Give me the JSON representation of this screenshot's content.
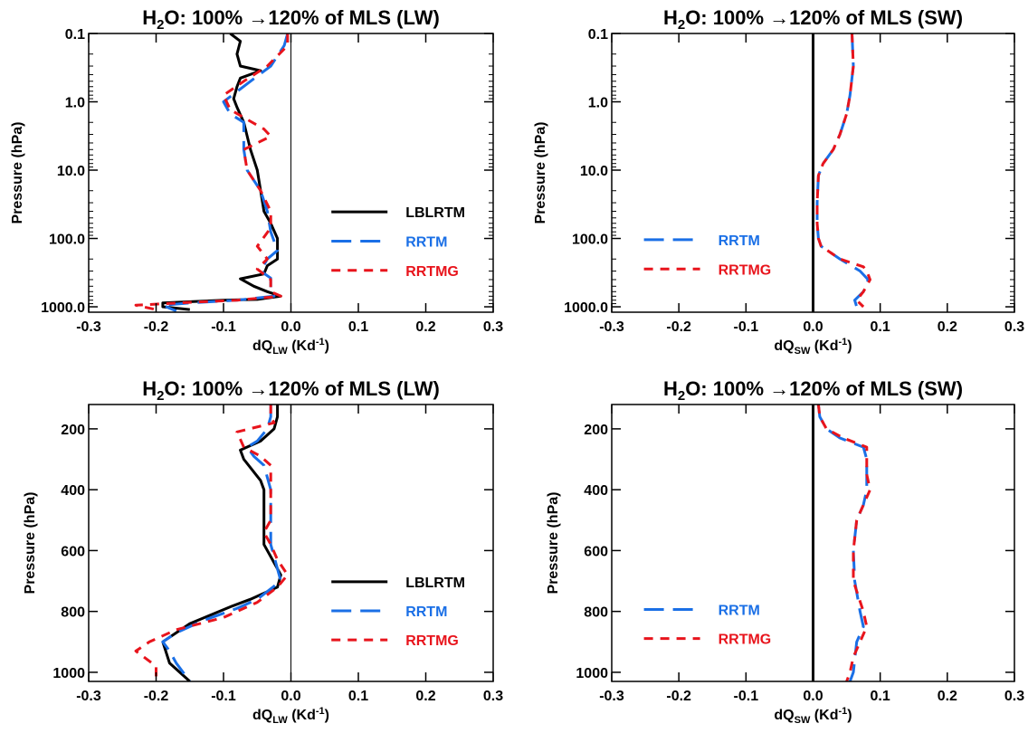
{
  "colors": {
    "LBLRTM": "#000000",
    "RRTM": "#1a6fe6",
    "RRTMG": "#e8141c"
  },
  "chart_data": [
    {
      "type": "line",
      "title_main": "H",
      "title_sub": "2",
      "title_rest": "O: 100% →120% of MLS (LW)",
      "xlabel_main": "dQ",
      "xlabel_sub": "LW",
      "xlabel_rest": " (Kd",
      "xlabel_sup": "-1",
      "xlabel_end": ")",
      "ylabel": "Pressure (hPa)",
      "xlim": [
        -0.3,
        0.3
      ],
      "ylim": [
        1200,
        0.1
      ],
      "yscale": "log",
      "xticks": [
        "-0.3",
        "-0.2",
        "-0.1",
        "0.0",
        "0.1",
        "0.2",
        "0.3"
      ],
      "yticks": [
        {
          "value": 0.1,
          "label": "0.1"
        },
        {
          "value": 1,
          "label": "1.0"
        },
        {
          "value": 10,
          "label": "10.0"
        },
        {
          "value": 100,
          "label": "100.0"
        },
        {
          "value": 1000,
          "label": "1000.0"
        }
      ],
      "legend": {
        "placement": "center-right",
        "entries": [
          "LBLRTM",
          "RRTM",
          "RRTMG"
        ]
      },
      "series": [
        {
          "name": "LBLRTM",
          "dash": "solid",
          "points": [
            [
              -0.09,
              0.1
            ],
            [
              -0.075,
              0.13
            ],
            [
              -0.08,
              0.2
            ],
            [
              -0.075,
              0.3
            ],
            [
              -0.045,
              0.35
            ],
            [
              -0.075,
              0.45
            ],
            [
              -0.08,
              0.6
            ],
            [
              -0.085,
              0.9
            ],
            [
              -0.08,
              1.2
            ],
            [
              -0.07,
              2
            ],
            [
              -0.06,
              5
            ],
            [
              -0.05,
              10
            ],
            [
              -0.045,
              20
            ],
            [
              -0.04,
              40
            ],
            [
              -0.03,
              60
            ],
            [
              -0.02,
              100
            ],
            [
              -0.02,
              200
            ],
            [
              -0.035,
              250
            ],
            [
              -0.04,
              330
            ],
            [
              -0.075,
              390
            ],
            [
              -0.055,
              500
            ],
            [
              -0.035,
              600
            ],
            [
              -0.015,
              700
            ],
            [
              -0.05,
              780
            ],
            [
              -0.1,
              800
            ],
            [
              -0.19,
              880
            ],
            [
              -0.19,
              1000
            ],
            [
              -0.15,
              1100
            ]
          ]
        },
        {
          "name": "RRTM",
          "dash": "long",
          "points": [
            [
              -0.005,
              0.1
            ],
            [
              -0.01,
              0.15
            ],
            [
              -0.03,
              0.3
            ],
            [
              -0.06,
              0.5
            ],
            [
              -0.1,
              1.0
            ],
            [
              -0.09,
              1.5
            ],
            [
              -0.07,
              2
            ],
            [
              -0.07,
              5
            ],
            [
              -0.065,
              10
            ],
            [
              -0.045,
              20
            ],
            [
              -0.035,
              40
            ],
            [
              -0.03,
              80
            ],
            [
              -0.02,
              150
            ],
            [
              -0.035,
              200
            ],
            [
              -0.045,
              300
            ],
            [
              -0.03,
              380
            ],
            [
              -0.03,
              600
            ],
            [
              -0.025,
              700
            ],
            [
              -0.08,
              800
            ],
            [
              -0.15,
              880
            ],
            [
              -0.19,
              950
            ],
            [
              -0.18,
              1050
            ],
            [
              -0.17,
              1150
            ]
          ]
        },
        {
          "name": "RRTMG",
          "dash": "short",
          "points": [
            [
              -0.005,
              0.1
            ],
            [
              -0.005,
              0.15
            ],
            [
              -0.035,
              0.3
            ],
            [
              -0.07,
              0.5
            ],
            [
              -0.1,
              0.8
            ],
            [
              -0.09,
              1.3
            ],
            [
              -0.07,
              1.7
            ],
            [
              -0.04,
              2.5
            ],
            [
              -0.03,
              3.2
            ],
            [
              -0.07,
              5
            ],
            [
              -0.065,
              10
            ],
            [
              -0.045,
              20
            ],
            [
              -0.03,
              40
            ],
            [
              -0.03,
              70
            ],
            [
              -0.05,
              130
            ],
            [
              -0.035,
              200
            ],
            [
              -0.05,
              280
            ],
            [
              -0.03,
              400
            ],
            [
              -0.03,
              600
            ],
            [
              -0.015,
              700
            ],
            [
              -0.08,
              800
            ],
            [
              -0.16,
              870
            ],
            [
              -0.23,
              950
            ],
            [
              -0.2,
              1100
            ]
          ]
        }
      ]
    },
    {
      "type": "line",
      "title_main": "H",
      "title_sub": "2",
      "title_rest": "O: 100% →120% of MLS (SW)",
      "xlabel_main": "dQ",
      "xlabel_sub": "SW",
      "xlabel_rest": " (Kd",
      "xlabel_sup": "-1",
      "xlabel_end": ")",
      "ylabel": "Pressure (hPa)",
      "xlim": [
        -0.3,
        0.3
      ],
      "ylim": [
        1200,
        0.1
      ],
      "yscale": "log",
      "xticks": [
        "-0.3",
        "-0.2",
        "-0.1",
        "0.0",
        "0.1",
        "0.2",
        "0.3"
      ],
      "yticks": [
        {
          "value": 0.1,
          "label": "0.1"
        },
        {
          "value": 1,
          "label": "1.0"
        },
        {
          "value": 10,
          "label": "10.0"
        },
        {
          "value": 100,
          "label": "100.0"
        },
        {
          "value": 1000,
          "label": "1000.0"
        }
      ],
      "legend": {
        "placement": "center-left",
        "entries": [
          "RRTM",
          "RRTMG"
        ]
      },
      "series": [
        {
          "name": "RRTM",
          "dash": "long",
          "points": [
            [
              0.058,
              0.1
            ],
            [
              0.06,
              0.3
            ],
            [
              0.055,
              0.8
            ],
            [
              0.05,
              1.5
            ],
            [
              0.04,
              3
            ],
            [
              0.03,
              5
            ],
            [
              0.015,
              8
            ],
            [
              0.008,
              12
            ],
            [
              0.006,
              30
            ],
            [
              0.006,
              60
            ],
            [
              0.008,
              100
            ],
            [
              0.012,
              130
            ],
            [
              0.04,
              200
            ],
            [
              0.07,
              300
            ],
            [
              0.082,
              400
            ],
            [
              0.075,
              600
            ],
            [
              0.062,
              800
            ],
            [
              0.065,
              1000
            ]
          ]
        },
        {
          "name": "RRTMG",
          "dash": "short",
          "points": [
            [
              0.058,
              0.1
            ],
            [
              0.06,
              0.3
            ],
            [
              0.055,
              0.8
            ],
            [
              0.05,
              1.5
            ],
            [
              0.04,
              3
            ],
            [
              0.03,
              5
            ],
            [
              0.015,
              8
            ],
            [
              0.008,
              12
            ],
            [
              0.006,
              30
            ],
            [
              0.006,
              60
            ],
            [
              0.008,
              100
            ],
            [
              0.012,
              130
            ],
            [
              0.04,
              200
            ],
            [
              0.075,
              260
            ],
            [
              0.08,
              300
            ],
            [
              0.085,
              400
            ],
            [
              0.075,
              600
            ],
            [
              0.065,
              800
            ],
            [
              0.075,
              1000
            ]
          ]
        }
      ]
    },
    {
      "type": "line",
      "title_main": "H",
      "title_sub": "2",
      "title_rest": "O: 100% →120% of MLS (LW)",
      "xlabel_main": "dQ",
      "xlabel_sub": "LW",
      "xlabel_rest": " (Kd",
      "xlabel_sup": "-1",
      "xlabel_end": ")",
      "ylabel": "Pressure (hPa)",
      "xlim": [
        -0.3,
        0.3
      ],
      "ylim": [
        1030,
        120
      ],
      "yscale": "linear",
      "xticks": [
        "-0.3",
        "-0.2",
        "-0.1",
        "0.0",
        "0.1",
        "0.2",
        "0.3"
      ],
      "yticks": [
        {
          "value": 200,
          "label": "200"
        },
        {
          "value": 400,
          "label": "400"
        },
        {
          "value": 600,
          "label": "600"
        },
        {
          "value": 800,
          "label": "800"
        },
        {
          "value": 1000,
          "label": "1000"
        }
      ],
      "legend": {
        "placement": "center-right",
        "entries": [
          "LBLRTM",
          "RRTM",
          "RRTMG"
        ]
      },
      "series": [
        {
          "name": "LBLRTM",
          "dash": "solid",
          "points": [
            [
              -0.02,
              120
            ],
            [
              -0.02,
              160
            ],
            [
              -0.025,
              200
            ],
            [
              -0.045,
              240
            ],
            [
              -0.075,
              270
            ],
            [
              -0.07,
              300
            ],
            [
              -0.045,
              370
            ],
            [
              -0.04,
              400
            ],
            [
              -0.04,
              500
            ],
            [
              -0.04,
              580
            ],
            [
              -0.03,
              620
            ],
            [
              -0.015,
              680
            ],
            [
              -0.02,
              720
            ],
            [
              -0.06,
              760
            ],
            [
              -0.09,
              785
            ],
            [
              -0.15,
              840
            ],
            [
              -0.19,
              900
            ],
            [
              -0.18,
              970
            ],
            [
              -0.15,
              1030
            ]
          ]
        },
        {
          "name": "RRTM",
          "dash": "long",
          "points": [
            [
              -0.03,
              120
            ],
            [
              -0.03,
              160
            ],
            [
              -0.035,
              200
            ],
            [
              -0.05,
              240
            ],
            [
              -0.065,
              260
            ],
            [
              -0.055,
              290
            ],
            [
              -0.04,
              320
            ],
            [
              -0.03,
              400
            ],
            [
              -0.03,
              500
            ],
            [
              -0.03,
              580
            ],
            [
              -0.025,
              620
            ],
            [
              -0.015,
              700
            ],
            [
              -0.05,
              760
            ],
            [
              -0.08,
              790
            ],
            [
              -0.13,
              830
            ],
            [
              -0.17,
              870
            ],
            [
              -0.19,
              900
            ],
            [
              -0.18,
              930
            ],
            [
              -0.17,
              970
            ],
            [
              -0.15,
              1030
            ]
          ]
        },
        {
          "name": "RRTMG",
          "dash": "short",
          "points": [
            [
              -0.03,
              120
            ],
            [
              -0.03,
              160
            ],
            [
              -0.025,
              180
            ],
            [
              -0.08,
              210
            ],
            [
              -0.07,
              260
            ],
            [
              -0.045,
              290
            ],
            [
              -0.03,
              320
            ],
            [
              -0.03,
              400
            ],
            [
              -0.03,
              500
            ],
            [
              -0.04,
              540
            ],
            [
              -0.03,
              580
            ],
            [
              -0.02,
              630
            ],
            [
              -0.005,
              680
            ],
            [
              -0.02,
              720
            ],
            [
              -0.05,
              770
            ],
            [
              -0.1,
              820
            ],
            [
              -0.17,
              860
            ],
            [
              -0.21,
              900
            ],
            [
              -0.23,
              930
            ],
            [
              -0.2,
              980
            ],
            [
              -0.2,
              1030
            ]
          ]
        }
      ]
    },
    {
      "type": "line",
      "title_main": "H",
      "title_sub": "2",
      "title_rest": "O: 100% →120% of MLS (SW)",
      "xlabel_main": "dQ",
      "xlabel_sub": "SW",
      "xlabel_rest": " (Kd",
      "xlabel_sup": "-1",
      "xlabel_end": ")",
      "ylabel": "Pressure (hPa)",
      "xlim": [
        -0.3,
        0.3
      ],
      "ylim": [
        1030,
        120
      ],
      "yscale": "linear",
      "xticks": [
        "-0.3",
        "-0.2",
        "-0.1",
        "0.0",
        "0.1",
        "0.2",
        "0.3"
      ],
      "yticks": [
        {
          "value": 200,
          "label": "200"
        },
        {
          "value": 400,
          "label": "400"
        },
        {
          "value": 600,
          "label": "600"
        },
        {
          "value": 800,
          "label": "800"
        },
        {
          "value": 1000,
          "label": "1000"
        }
      ],
      "legend": {
        "placement": "bottom-left",
        "entries": [
          "RRTM",
          "RRTMG"
        ]
      },
      "series": [
        {
          "name": "RRTM",
          "dash": "long",
          "points": [
            [
              0.008,
              120
            ],
            [
              0.01,
              160
            ],
            [
              0.02,
              200
            ],
            [
              0.04,
              230
            ],
            [
              0.075,
              260
            ],
            [
              0.08,
              300
            ],
            [
              0.08,
              350
            ],
            [
              0.08,
              400
            ],
            [
              0.075,
              450
            ],
            [
              0.065,
              500
            ],
            [
              0.06,
              600
            ],
            [
              0.062,
              700
            ],
            [
              0.07,
              800
            ],
            [
              0.075,
              850
            ],
            [
              0.065,
              900
            ],
            [
              0.06,
              1000
            ],
            [
              0.055,
              1030
            ]
          ]
        },
        {
          "name": "RRTMG",
          "dash": "short",
          "points": [
            [
              0.008,
              120
            ],
            [
              0.01,
              160
            ],
            [
              0.02,
              200
            ],
            [
              0.045,
              230
            ],
            [
              0.08,
              260
            ],
            [
              0.08,
              300
            ],
            [
              0.08,
              350
            ],
            [
              0.085,
              400
            ],
            [
              0.075,
              450
            ],
            [
              0.065,
              500
            ],
            [
              0.06,
              600
            ],
            [
              0.06,
              700
            ],
            [
              0.075,
              800
            ],
            [
              0.08,
              850
            ],
            [
              0.07,
              900
            ],
            [
              0.06,
              950
            ],
            [
              0.055,
              1000
            ],
            [
              0.05,
              1030
            ]
          ]
        }
      ]
    }
  ]
}
